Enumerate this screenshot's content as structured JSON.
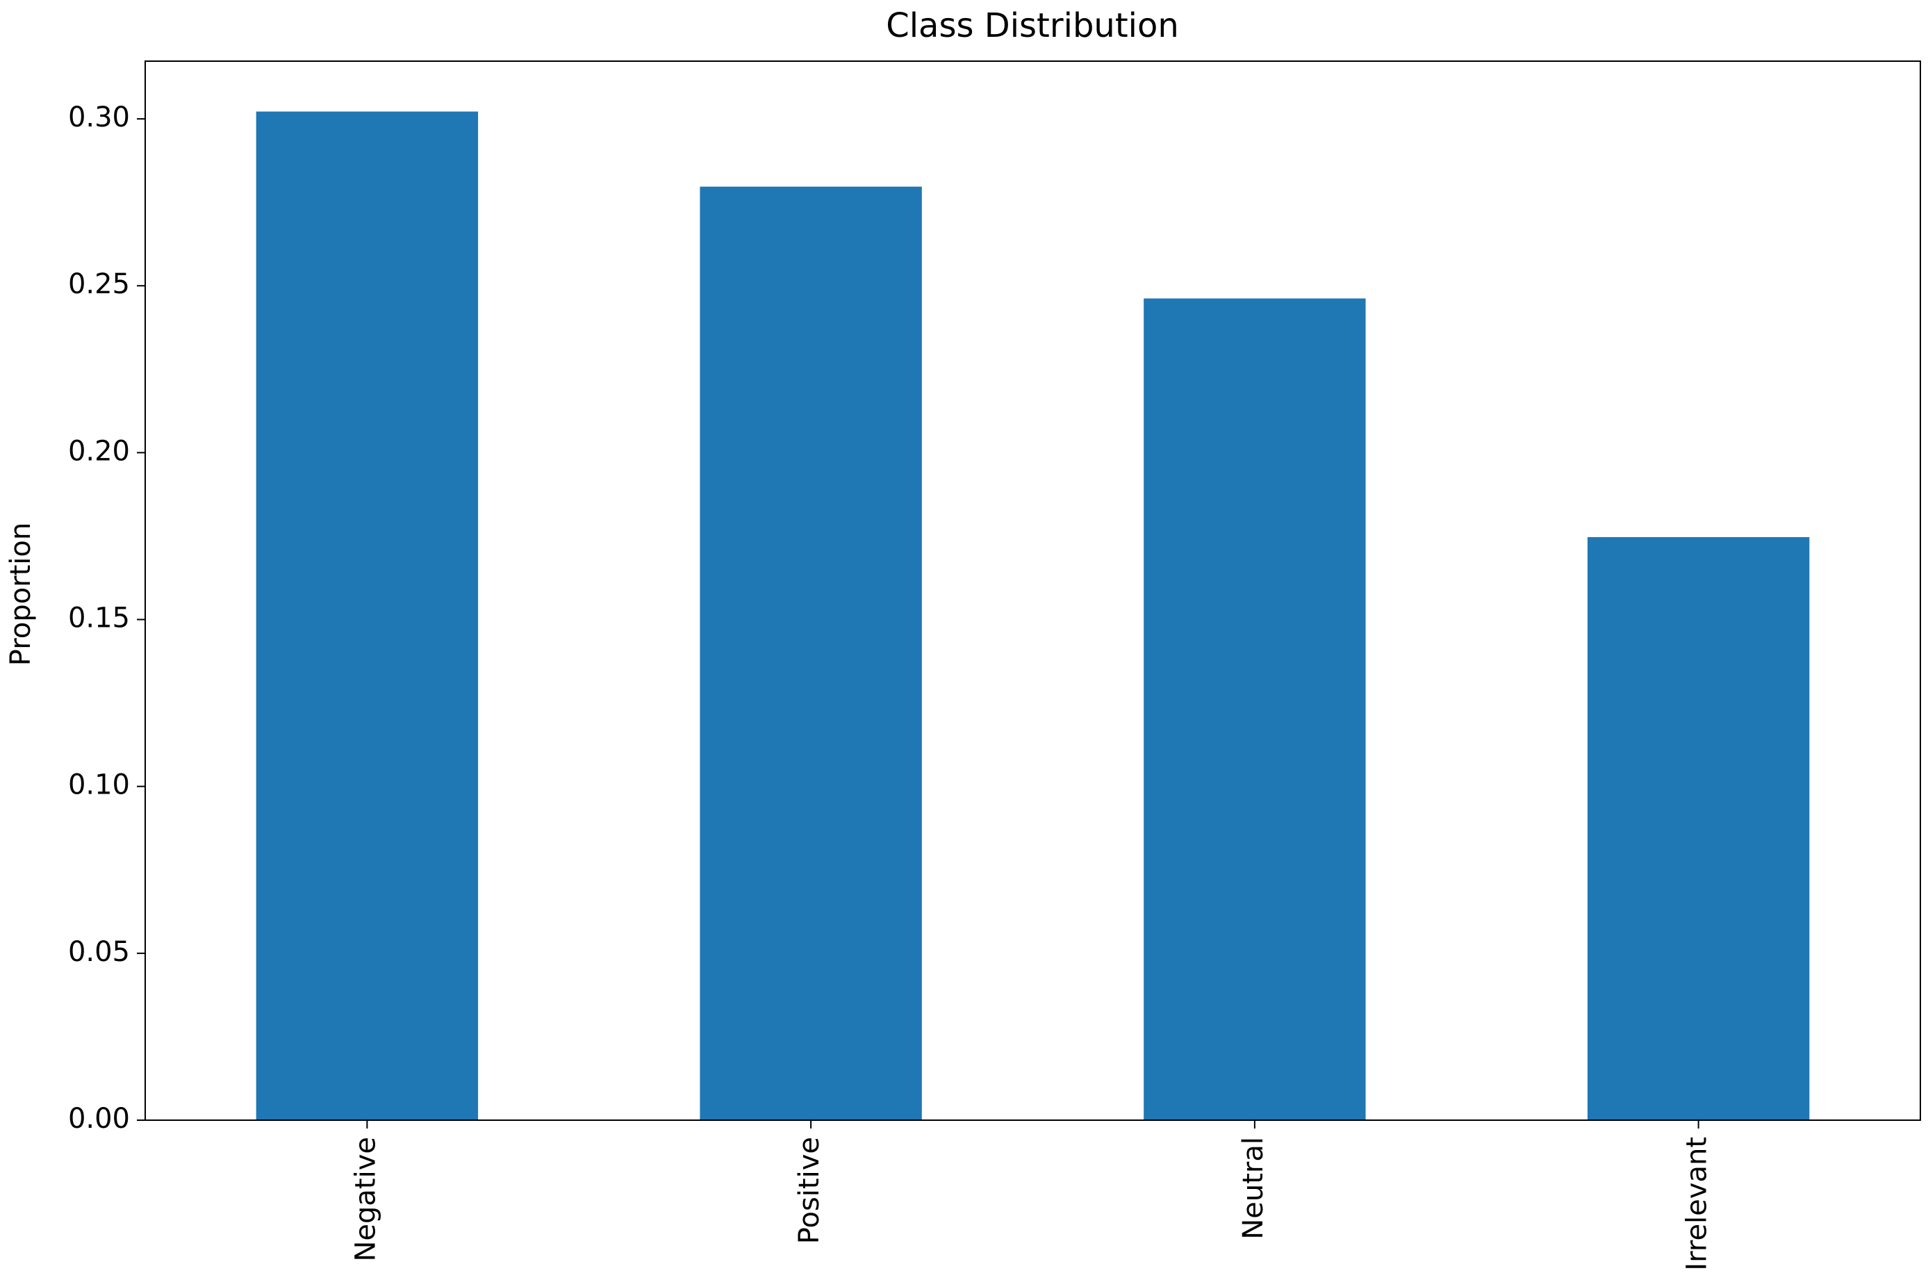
{
  "chart_data": {
    "type": "bar",
    "title": "Class Distribution",
    "y_label": "Proportion",
    "categories": [
      "Negative",
      "Positive",
      "Neutral",
      "Irrelevant"
    ],
    "values": [
      0.3022,
      0.2797,
      0.2462,
      0.1747
    ],
    "color": "#1f77b4",
    "ylim": [
      0,
      0.3173
    ],
    "yticks": [
      {
        "value": 0,
        "label": "0.00"
      },
      {
        "value": 0.05,
        "label": "0.05"
      },
      {
        "value": 0.1,
        "label": "0.10"
      },
      {
        "value": 0.15,
        "label": "0.15"
      },
      {
        "value": 0.2,
        "label": "0.20"
      },
      {
        "value": 0.25,
        "label": "0.25"
      },
      {
        "value": 0.3,
        "label": "0.30"
      }
    ],
    "grid": false
  }
}
